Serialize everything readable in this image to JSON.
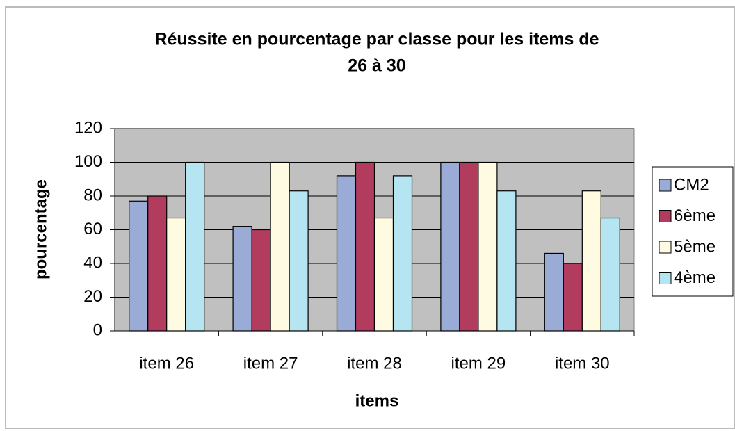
{
  "chart_data": {
    "type": "bar",
    "title": [
      "Réussite en pourcentage par classe pour les items de",
      "26 à 30"
    ],
    "xlabel": "items",
    "ylabel": "pourcentage",
    "categories": [
      "item 26",
      "item 27",
      "item 28",
      "item 29",
      "item 30"
    ],
    "series": [
      {
        "name": "CM2",
        "color": "#9aabd6",
        "values": [
          77,
          62,
          92,
          100,
          46
        ]
      },
      {
        "name": "6ème",
        "color": "#b23c5e",
        "values": [
          80,
          60,
          100,
          100,
          40
        ]
      },
      {
        "name": "5ème",
        "color": "#fffbe2",
        "values": [
          67,
          100,
          67,
          100,
          83
        ]
      },
      {
        "name": "4ème",
        "color": "#b6e5f2",
        "values": [
          100,
          83,
          92,
          83,
          67
        ]
      }
    ],
    "ylim": [
      0,
      120
    ],
    "yticks": [
      0,
      20,
      40,
      60,
      80,
      100,
      120
    ],
    "grid": true,
    "legend": "right"
  }
}
